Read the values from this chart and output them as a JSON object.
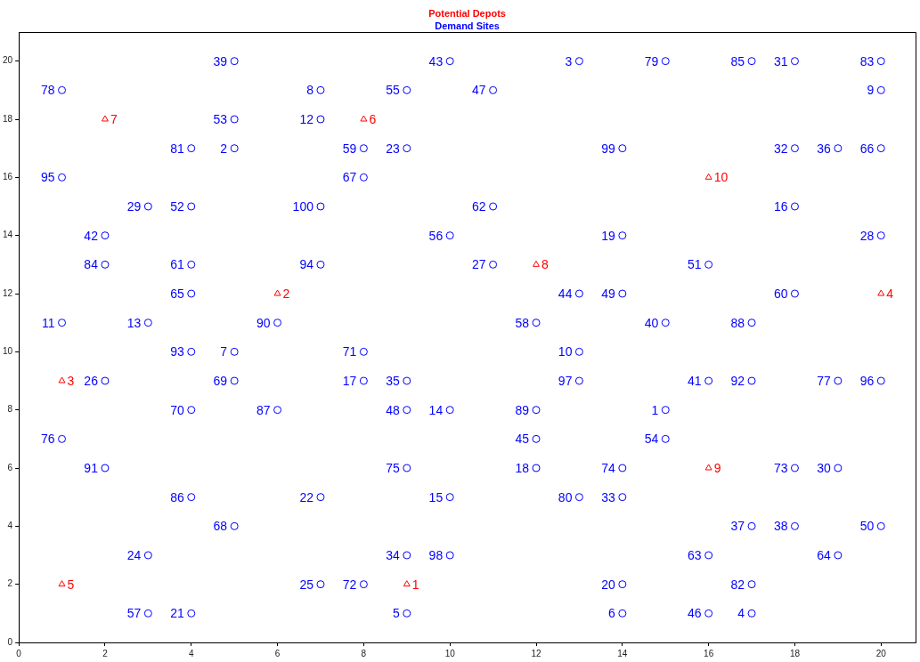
{
  "chart_data": {
    "type": "scatter",
    "xlim": [
      0,
      20.8
    ],
    "ylim": [
      0,
      21
    ],
    "xticks": [
      0,
      2,
      4,
      6,
      8,
      10,
      12,
      14,
      16,
      18,
      20
    ],
    "yticks": [
      0,
      2,
      4,
      6,
      8,
      10,
      12,
      14,
      16,
      18,
      20
    ],
    "grid": false,
    "legend": "top",
    "series": [
      {
        "name": "Potential Depots",
        "color": "#ff0000",
        "marker": "triangle",
        "x": [
          9,
          6,
          1,
          20,
          1,
          8,
          2,
          12,
          16,
          16
        ],
        "values": [
          2,
          12,
          9,
          12,
          2,
          18,
          18,
          13,
          6,
          16
        ]
      },
      {
        "name": "Demand Sites",
        "color": "#0000ff",
        "marker": "circle",
        "x": [
          5,
          10,
          13,
          15,
          17,
          18,
          20,
          1,
          7,
          9,
          11,
          20,
          5,
          7,
          4,
          5,
          8,
          9,
          14,
          18,
          19,
          20,
          1,
          8,
          3,
          4,
          7,
          11,
          18,
          2,
          10,
          14,
          20,
          2,
          4,
          7,
          11,
          16,
          4,
          13,
          14,
          18,
          1,
          3,
          6,
          12,
          15,
          17,
          4,
          5,
          8,
          13,
          2,
          5,
          8,
          9,
          13,
          16,
          17,
          19,
          20,
          4,
          6,
          9,
          10,
          12,
          15,
          1,
          12,
          15,
          2,
          9,
          12,
          14,
          18,
          19,
          4,
          7,
          10,
          13,
          14,
          5,
          17,
          18,
          20,
          3,
          9,
          10,
          16,
          19,
          7,
          8,
          14,
          17,
          3,
          4,
          9,
          14,
          16,
          17
        ],
        "values": [
          20,
          20,
          20,
          20,
          20,
          20,
          20,
          19,
          19,
          19,
          19,
          19,
          18,
          18,
          17,
          17,
          17,
          17,
          17,
          17,
          17,
          17,
          16,
          16,
          15,
          15,
          15,
          15,
          15,
          14,
          14,
          14,
          14,
          13,
          13,
          13,
          13,
          13,
          12,
          12,
          12,
          12,
          11,
          11,
          11,
          11,
          11,
          11,
          10,
          10,
          10,
          10,
          9,
          9,
          9,
          9,
          9,
          9,
          9,
          9,
          9,
          8,
          8,
          8,
          8,
          8,
          8,
          7,
          7,
          7,
          6,
          6,
          6,
          6,
          6,
          6,
          5,
          5,
          5,
          5,
          5,
          4,
          4,
          4,
          4,
          3,
          3,
          3,
          3,
          3,
          2,
          2,
          2,
          2,
          1,
          1,
          1,
          1,
          1,
          1
        ]
      }
    ],
    "annotations": [
      {
        "text": "1",
        "x": 9,
        "y": 2
      },
      {
        "text": "2",
        "x": 6,
        "y": 12
      },
      {
        "text": "3",
        "x": 1,
        "y": 9
      },
      {
        "text": "4",
        "x": 20,
        "y": 12
      },
      {
        "text": "5",
        "x": 1,
        "y": 2
      },
      {
        "text": "6",
        "x": 8,
        "y": 18
      },
      {
        "text": "7",
        "x": 2,
        "y": 18
      },
      {
        "text": "8",
        "x": 12,
        "y": 13
      },
      {
        "text": "9",
        "x": 16,
        "y": 6
      },
      {
        "text": "10",
        "x": 16,
        "y": 16
      },
      {
        "text": "39",
        "x": 5,
        "y": 20
      },
      {
        "text": "43",
        "x": 10,
        "y": 20
      },
      {
        "text": "3",
        "x": 13,
        "y": 20
      },
      {
        "text": "79",
        "x": 15,
        "y": 20
      },
      {
        "text": "85",
        "x": 17,
        "y": 20
      },
      {
        "text": "31",
        "x": 18,
        "y": 20
      },
      {
        "text": "83",
        "x": 20,
        "y": 20
      },
      {
        "text": "78",
        "x": 1,
        "y": 19
      },
      {
        "text": "8",
        "x": 7,
        "y": 19
      },
      {
        "text": "55",
        "x": 9,
        "y": 19
      },
      {
        "text": "47",
        "x": 11,
        "y": 19
      },
      {
        "text": "9",
        "x": 20,
        "y": 19
      },
      {
        "text": "53",
        "x": 5,
        "y": 18
      },
      {
        "text": "12",
        "x": 7,
        "y": 18
      },
      {
        "text": "81",
        "x": 4,
        "y": 17
      },
      {
        "text": "2",
        "x": 5,
        "y": 17
      },
      {
        "text": "59",
        "x": 8,
        "y": 17
      },
      {
        "text": "23",
        "x": 9,
        "y": 17
      },
      {
        "text": "99",
        "x": 14,
        "y": 17
      },
      {
        "text": "32",
        "x": 18,
        "y": 17
      },
      {
        "text": "36",
        "x": 19,
        "y": 17
      },
      {
        "text": "66",
        "x": 20,
        "y": 17
      },
      {
        "text": "95",
        "x": 1,
        "y": 16
      },
      {
        "text": "67",
        "x": 8,
        "y": 16
      },
      {
        "text": "29",
        "x": 3,
        "y": 15
      },
      {
        "text": "52",
        "x": 4,
        "y": 15
      },
      {
        "text": "100",
        "x": 7,
        "y": 15
      },
      {
        "text": "62",
        "x": 11,
        "y": 15
      },
      {
        "text": "16",
        "x": 18,
        "y": 15
      },
      {
        "text": "42",
        "x": 2,
        "y": 14
      },
      {
        "text": "56",
        "x": 10,
        "y": 14
      },
      {
        "text": "19",
        "x": 14,
        "y": 14
      },
      {
        "text": "28",
        "x": 20,
        "y": 14
      },
      {
        "text": "84",
        "x": 2,
        "y": 13
      },
      {
        "text": "61",
        "x": 4,
        "y": 13
      },
      {
        "text": "94",
        "x": 7,
        "y": 13
      },
      {
        "text": "27",
        "x": 11,
        "y": 13
      },
      {
        "text": "51",
        "x": 16,
        "y": 13
      },
      {
        "text": "65",
        "x": 4,
        "y": 12
      },
      {
        "text": "44",
        "x": 13,
        "y": 12
      },
      {
        "text": "49",
        "x": 14,
        "y": 12
      },
      {
        "text": "60",
        "x": 18,
        "y": 12
      },
      {
        "text": "11",
        "x": 1,
        "y": 11
      },
      {
        "text": "13",
        "x": 3,
        "y": 11
      },
      {
        "text": "90",
        "x": 6,
        "y": 11
      },
      {
        "text": "58",
        "x": 12,
        "y": 11
      },
      {
        "text": "40",
        "x": 15,
        "y": 11
      },
      {
        "text": "88",
        "x": 17,
        "y": 11
      },
      {
        "text": "93",
        "x": 4,
        "y": 10
      },
      {
        "text": "7",
        "x": 5,
        "y": 10
      },
      {
        "text": "71",
        "x": 8,
        "y": 10
      },
      {
        "text": "10",
        "x": 13,
        "y": 10
      },
      {
        "text": "26",
        "x": 2,
        "y": 9
      },
      {
        "text": "69",
        "x": 5,
        "y": 9
      },
      {
        "text": "17",
        "x": 8,
        "y": 9
      },
      {
        "text": "35",
        "x": 9,
        "y": 9
      },
      {
        "text": "97",
        "x": 13,
        "y": 9
      },
      {
        "text": "41",
        "x": 16,
        "y": 9
      },
      {
        "text": "92",
        "x": 17,
        "y": 9
      },
      {
        "text": "77",
        "x": 19,
        "y": 9
      },
      {
        "text": "96",
        "x": 20,
        "y": 9
      },
      {
        "text": "70",
        "x": 4,
        "y": 8
      },
      {
        "text": "87",
        "x": 6,
        "y": 8
      },
      {
        "text": "48",
        "x": 9,
        "y": 8
      },
      {
        "text": "14",
        "x": 10,
        "y": 8
      },
      {
        "text": "89",
        "x": 12,
        "y": 8
      },
      {
        "text": "1",
        "x": 15,
        "y": 8
      },
      {
        "text": "76",
        "x": 1,
        "y": 7
      },
      {
        "text": "45",
        "x": 12,
        "y": 7
      },
      {
        "text": "54",
        "x": 15,
        "y": 7
      },
      {
        "text": "91",
        "x": 2,
        "y": 6
      },
      {
        "text": "75",
        "x": 9,
        "y": 6
      },
      {
        "text": "18",
        "x": 12,
        "y": 6
      },
      {
        "text": "74",
        "x": 14,
        "y": 6
      },
      {
        "text": "73",
        "x": 18,
        "y": 6
      },
      {
        "text": "30",
        "x": 19,
        "y": 6
      },
      {
        "text": "86",
        "x": 4,
        "y": 5
      },
      {
        "text": "22",
        "x": 7,
        "y": 5
      },
      {
        "text": "15",
        "x": 10,
        "y": 5
      },
      {
        "text": "80",
        "x": 13,
        "y": 5
      },
      {
        "text": "33",
        "x": 14,
        "y": 5
      },
      {
        "text": "68",
        "x": 5,
        "y": 4
      },
      {
        "text": "37",
        "x": 17,
        "y": 4
      },
      {
        "text": "38",
        "x": 18,
        "y": 4
      },
      {
        "text": "50",
        "x": 20,
        "y": 4
      },
      {
        "text": "24",
        "x": 3,
        "y": 3
      },
      {
        "text": "34",
        "x": 9,
        "y": 3
      },
      {
        "text": "98",
        "x": 10,
        "y": 3
      },
      {
        "text": "63",
        "x": 16,
        "y": 3
      },
      {
        "text": "64",
        "x": 19,
        "y": 3
      },
      {
        "text": "25",
        "x": 7,
        "y": 2
      },
      {
        "text": "72",
        "x": 8,
        "y": 2
      },
      {
        "text": "20",
        "x": 14,
        "y": 2
      },
      {
        "text": "82",
        "x": 17,
        "y": 2
      },
      {
        "text": "57",
        "x": 3,
        "y": 1
      },
      {
        "text": "21",
        "x": 4,
        "y": 1
      },
      {
        "text": "5",
        "x": 9,
        "y": 1
      },
      {
        "text": "6",
        "x": 14,
        "y": 1
      },
      {
        "text": "46",
        "x": 16,
        "y": 1
      },
      {
        "text": "4",
        "x": 17,
        "y": 1
      }
    ]
  }
}
